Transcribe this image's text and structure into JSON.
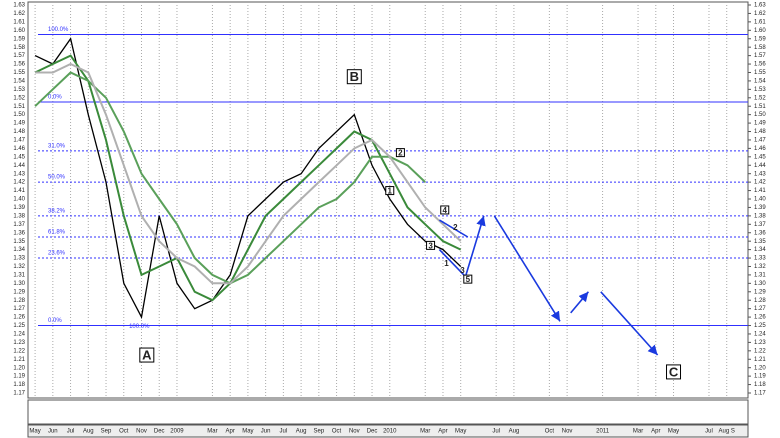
{
  "chart_data": {
    "type": "line",
    "x": [
      0,
      1,
      2,
      3,
      4,
      5,
      6,
      7,
      8,
      9,
      10,
      11,
      12,
      13,
      14,
      15,
      16,
      17,
      18,
      19,
      20,
      21,
      22,
      23,
      24
    ],
    "xlim": [
      -0.4,
      40.2
    ],
    "xticks": [
      {
        "value": 0,
        "label": "May"
      },
      {
        "value": 1,
        "label": "Jun"
      },
      {
        "value": 2,
        "label": "Jul"
      },
      {
        "value": 3,
        "label": "Aug"
      },
      {
        "value": 4,
        "label": "Sep"
      },
      {
        "value": 5,
        "label": "Oct"
      },
      {
        "value": 6,
        "label": "Nov"
      },
      {
        "value": 7,
        "label": "Dec"
      },
      {
        "value": 8,
        "label": "2009"
      },
      {
        "value": 10,
        "label": "Mar"
      },
      {
        "value": 11,
        "label": "Apr"
      },
      {
        "value": 12,
        "label": "May"
      },
      {
        "value": 13,
        "label": "Jun"
      },
      {
        "value": 14,
        "label": "Jul"
      },
      {
        "value": 15,
        "label": "Aug"
      },
      {
        "value": 16,
        "label": "Sep"
      },
      {
        "value": 17,
        "label": "Oct"
      },
      {
        "value": 18,
        "label": "Nov"
      },
      {
        "value": 19,
        "label": "Dec"
      },
      {
        "value": 20,
        "label": "2010"
      },
      {
        "value": 22,
        "label": "Mar"
      },
      {
        "value": 23,
        "label": "Apr"
      },
      {
        "value": 24,
        "label": "May"
      },
      {
        "value": 26,
        "label": "Jul"
      },
      {
        "value": 27,
        "label": "Aug"
      },
      {
        "value": 29,
        "label": "Oct"
      },
      {
        "value": 30,
        "label": "Nov"
      },
      {
        "value": 32,
        "label": "2011"
      },
      {
        "value": 34,
        "label": "Mar"
      },
      {
        "value": 35,
        "label": "Apr"
      },
      {
        "value": 36,
        "label": "May"
      },
      {
        "value": 38,
        "label": "Jul"
      },
      {
        "value": 39,
        "label": "Aug S"
      }
    ],
    "ylim": [
      1.17,
      1.63
    ],
    "yticks": [
      1.17,
      1.18,
      1.19,
      {
        "value": 1.2,
        "label": "1.20"
      },
      1.21,
      1.22,
      1.23,
      1.24,
      1.25,
      1.26,
      1.27,
      1.28,
      1.29,
      {
        "value": 1.3,
        "label": "1.30"
      },
      1.31,
      1.32,
      1.33,
      1.34,
      1.35,
      1.36,
      1.37,
      1.38,
      1.39,
      {
        "value": 1.4,
        "label": "1.40"
      },
      1.41,
      1.42,
      1.43,
      1.44,
      1.45,
      1.46,
      1.47,
      1.48,
      1.49,
      {
        "value": 1.5,
        "label": "1.50"
      },
      1.51,
      1.52,
      1.53,
      1.54,
      1.55,
      1.56,
      1.57,
      1.58,
      1.59,
      {
        "value": 1.6,
        "label": "1.60"
      },
      1.61,
      1.62,
      1.63
    ],
    "grid": true,
    "series": [
      {
        "color": "#000000",
        "values": [
          1.57,
          1.56,
          1.59,
          1.5,
          1.42,
          1.3,
          1.26,
          1.38,
          1.3,
          1.27,
          1.28,
          1.31,
          1.38,
          1.4,
          1.42,
          1.43,
          1.46,
          1.48,
          1.5,
          1.44,
          1.4,
          1.37,
          1.35,
          1.34,
          1.32
        ]
      },
      {
        "color": "#3a8a3a",
        "values": [
          1.55,
          1.56,
          1.57,
          1.54,
          1.47,
          1.38,
          1.31,
          1.32,
          1.33,
          1.29,
          1.28,
          1.3,
          1.34,
          1.38,
          1.4,
          1.42,
          1.44,
          1.46,
          1.48,
          1.47,
          1.43,
          1.39,
          1.37,
          1.35,
          1.34
        ]
      },
      {
        "color": "#5aa05a",
        "values": [
          1.51,
          1.53,
          1.55,
          1.54,
          1.52,
          1.48,
          1.43,
          1.4,
          1.37,
          1.33,
          1.31,
          1.3,
          1.31,
          1.33,
          1.35,
          1.37,
          1.39,
          1.4,
          1.42,
          1.45,
          1.45,
          1.44,
          1.42,
          null,
          null
        ]
      },
      {
        "color": "#b0b0b0",
        "values": [
          1.55,
          1.55,
          1.56,
          1.55,
          1.5,
          1.44,
          1.38,
          1.35,
          1.33,
          1.32,
          1.3,
          1.3,
          1.32,
          1.35,
          1.38,
          1.4,
          1.42,
          1.44,
          1.46,
          1.47,
          1.45,
          1.42,
          1.39,
          1.37,
          1.35
        ]
      }
    ],
    "levels": [
      {
        "value": 1.595,
        "label": "100.0%"
      },
      {
        "value": 1.515,
        "label": "0.0%"
      },
      {
        "value": 1.457,
        "label": "31.0%"
      },
      {
        "value": 1.42,
        "label": "50.0%"
      },
      {
        "value": 1.38,
        "label": "38.2%"
      },
      {
        "value": 1.355,
        "label": "61.8%"
      },
      {
        "value": 1.33,
        "label": "23.6%"
      },
      {
        "value": 1.25,
        "label": "0.0%"
      }
    ],
    "level_mid_labels": [
      {
        "value": 1.25,
        "label": "100.0%"
      }
    ],
    "wave_labels": [
      {
        "text": "A",
        "x": 6.3,
        "y": 1.215
      },
      {
        "text": "B",
        "x": 18,
        "y": 1.545
      },
      {
        "text": "C",
        "x": 36,
        "y": 1.195
      },
      {
        "text": "1",
        "x": 20,
        "y": 1.41
      },
      {
        "text": "2",
        "x": 20.6,
        "y": 1.455
      },
      {
        "text": "3",
        "x": 22.3,
        "y": 1.345
      },
      {
        "text": "4",
        "x": 23.1,
        "y": 1.387
      },
      {
        "text": "5",
        "x": 24.4,
        "y": 1.305
      }
    ],
    "minor_wave_labels": [
      {
        "text": "1",
        "x": 23.2,
        "y": 1.323
      },
      {
        "text": "2",
        "x": 23.7,
        "y": 1.366
      },
      {
        "text": "3",
        "x": 24.1,
        "y": 1.315
      }
    ],
    "arrows": [
      {
        "x": [
          24.3,
          25.3
        ],
        "y": [
          1.31,
          1.38
        ]
      },
      {
        "x": [
          25.9,
          29.6
        ],
        "y": [
          1.38,
          1.255
        ]
      },
      {
        "x": [
          30.2,
          31.2
        ],
        "y": [
          1.265,
          1.29
        ]
      },
      {
        "x": [
          31.9,
          35.1
        ],
        "y": [
          1.29,
          1.215
        ]
      },
      {
        "x": [
          22.8,
          24.4
        ],
        "y": [
          1.375,
          1.355
        ]
      },
      {
        "x": [
          22.8,
          24.4
        ],
        "y": [
          1.34,
          1.305
        ]
      }
    ]
  }
}
